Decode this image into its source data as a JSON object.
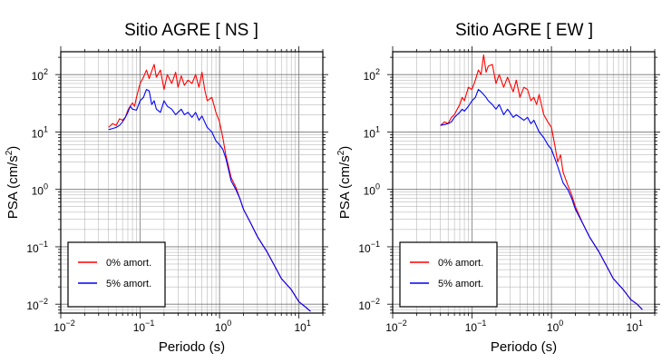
{
  "chart_data": [
    {
      "type": "line",
      "title": "Sitio AGRE [ NS ]",
      "xlabel": "Periodo (s)",
      "ylabel_base": "PSA (cm/s",
      "ylabel_sup": "2",
      "ylabel_end": ")",
      "x_scale": "log",
      "y_scale": "log",
      "xlim": [
        0.01,
        20
      ],
      "ylim": [
        0.007,
        250
      ],
      "grid": true,
      "legend_position": "bottom-left",
      "x_ticks": [
        {
          "base": "10",
          "exp": "−2",
          "value": 0.01
        },
        {
          "base": "10",
          "exp": "−1",
          "value": 0.1
        },
        {
          "base": "10",
          "exp": "0",
          "value": 1
        },
        {
          "base": "10",
          "exp": "1",
          "value": 10
        }
      ],
      "y_ticks": [
        {
          "base": "10",
          "exp": "−2",
          "value": 0.01
        },
        {
          "base": "10",
          "exp": "−1",
          "value": 0.1
        },
        {
          "base": "10",
          "exp": "0",
          "value": 1
        },
        {
          "base": "10",
          "exp": "1",
          "value": 10
        },
        {
          "base": "10",
          "exp": "2",
          "value": 100
        }
      ],
      "series": [
        {
          "name": "0% amort.",
          "color": "#ff0000",
          "x": [
            0.04,
            0.045,
            0.05,
            0.055,
            0.06,
            0.065,
            0.07,
            0.075,
            0.08,
            0.085,
            0.09,
            0.1,
            0.11,
            0.12,
            0.13,
            0.14,
            0.15,
            0.16,
            0.18,
            0.2,
            0.22,
            0.25,
            0.28,
            0.3,
            0.33,
            0.36,
            0.4,
            0.45,
            0.5,
            0.55,
            0.6,
            0.65,
            0.7,
            0.8,
            0.9,
            1.0,
            1.1,
            1.2,
            1.4,
            1.6,
            1.8,
            2.0,
            2.5,
            3.0,
            4.0,
            5.0,
            6.0,
            8.0,
            10,
            12,
            14
          ],
          "y": [
            12,
            14,
            13,
            17,
            16,
            18,
            24,
            28,
            32,
            28,
            40,
            70,
            90,
            120,
            85,
            115,
            150,
            90,
            120,
            55,
            100,
            70,
            110,
            60,
            95,
            65,
            80,
            70,
            100,
            60,
            110,
            55,
            35,
            40,
            22,
            15,
            8,
            4,
            1.6,
            1.1,
            0.7,
            0.45,
            0.25,
            0.15,
            0.08,
            0.045,
            0.028,
            0.018,
            0.011,
            0.009,
            0.0075
          ]
        },
        {
          "name": "5% amort.",
          "color": "#0000ff",
          "x": [
            0.04,
            0.045,
            0.05,
            0.055,
            0.06,
            0.065,
            0.07,
            0.075,
            0.08,
            0.09,
            0.1,
            0.11,
            0.12,
            0.13,
            0.14,
            0.15,
            0.16,
            0.18,
            0.2,
            0.22,
            0.25,
            0.28,
            0.3,
            0.33,
            0.36,
            0.4,
            0.45,
            0.5,
            0.55,
            0.6,
            0.7,
            0.8,
            0.9,
            1.0,
            1.1,
            1.2,
            1.4,
            1.6,
            1.8,
            2.0,
            2.5,
            3.0,
            4.0,
            5.0,
            6.0,
            8.0,
            10,
            12,
            14
          ],
          "y": [
            11,
            11.5,
            12,
            13,
            15,
            18,
            22,
            28,
            25,
            24,
            35,
            40,
            55,
            52,
            30,
            35,
            25,
            22,
            35,
            28,
            25,
            20,
            22,
            25,
            20,
            22,
            18,
            22,
            16,
            19,
            12,
            10,
            7,
            6,
            5,
            3.5,
            1.4,
            1.0,
            0.7,
            0.45,
            0.25,
            0.15,
            0.08,
            0.045,
            0.028,
            0.018,
            0.011,
            0.009,
            0.0075
          ]
        }
      ]
    },
    {
      "type": "line",
      "title": "Sitio AGRE [ EW ]",
      "xlabel": "Periodo (s)",
      "ylabel_base": "PSA (cm/s",
      "ylabel_sup": "2",
      "ylabel_end": ")",
      "x_scale": "log",
      "y_scale": "log",
      "xlim": [
        0.01,
        20
      ],
      "ylim": [
        0.007,
        250
      ],
      "grid": true,
      "legend_position": "bottom-left",
      "x_ticks": [
        {
          "base": "10",
          "exp": "−2",
          "value": 0.01
        },
        {
          "base": "10",
          "exp": "−1",
          "value": 0.1
        },
        {
          "base": "10",
          "exp": "0",
          "value": 1
        },
        {
          "base": "10",
          "exp": "1",
          "value": 10
        }
      ],
      "y_ticks": [
        {
          "base": "10",
          "exp": "−2",
          "value": 0.01
        },
        {
          "base": "10",
          "exp": "−1",
          "value": 0.1
        },
        {
          "base": "10",
          "exp": "0",
          "value": 1
        },
        {
          "base": "10",
          "exp": "1",
          "value": 10
        },
        {
          "base": "10",
          "exp": "2",
          "value": 100
        }
      ],
      "series": [
        {
          "name": "0% amort.",
          "color": "#ff0000",
          "x": [
            0.04,
            0.045,
            0.05,
            0.055,
            0.06,
            0.065,
            0.07,
            0.075,
            0.08,
            0.09,
            0.1,
            0.11,
            0.12,
            0.13,
            0.14,
            0.15,
            0.16,
            0.18,
            0.2,
            0.22,
            0.25,
            0.28,
            0.3,
            0.33,
            0.36,
            0.4,
            0.45,
            0.5,
            0.55,
            0.6,
            0.65,
            0.7,
            0.8,
            0.9,
            1.0,
            1.1,
            1.2,
            1.3,
            1.4,
            1.6,
            1.8,
            2.0,
            2.5,
            3.0,
            4.0,
            5.0,
            6.0,
            8.0,
            10,
            12,
            14
          ],
          "y": [
            13,
            15,
            14,
            18,
            20,
            25,
            30,
            40,
            35,
            60,
            55,
            80,
            120,
            100,
            220,
            110,
            140,
            150,
            70,
            100,
            60,
            90,
            70,
            50,
            80,
            40,
            60,
            55,
            35,
            40,
            30,
            45,
            20,
            15,
            12,
            6,
            3,
            4,
            2,
            1.2,
            0.8,
            0.5,
            0.25,
            0.15,
            0.08,
            0.045,
            0.028,
            0.018,
            0.012,
            0.01,
            0.008
          ]
        },
        {
          "name": "5% amort.",
          "color": "#0000ff",
          "x": [
            0.04,
            0.045,
            0.05,
            0.055,
            0.06,
            0.065,
            0.07,
            0.075,
            0.08,
            0.09,
            0.1,
            0.11,
            0.12,
            0.13,
            0.14,
            0.15,
            0.16,
            0.18,
            0.2,
            0.22,
            0.25,
            0.28,
            0.3,
            0.33,
            0.36,
            0.4,
            0.45,
            0.5,
            0.55,
            0.6,
            0.7,
            0.8,
            0.9,
            1.0,
            1.1,
            1.2,
            1.4,
            1.6,
            1.8,
            2.0,
            2.5,
            3.0,
            4.0,
            5.0,
            6.0,
            8.0,
            10,
            12,
            14
          ],
          "y": [
            13,
            13.5,
            14,
            15,
            18,
            20,
            22,
            25,
            23,
            28,
            35,
            40,
            55,
            50,
            45,
            40,
            35,
            30,
            25,
            30,
            20,
            25,
            22,
            18,
            20,
            18,
            16,
            18,
            14,
            16,
            10,
            8,
            6,
            5,
            3.5,
            2.5,
            1.3,
            1.0,
            0.7,
            0.45,
            0.25,
            0.15,
            0.08,
            0.045,
            0.028,
            0.018,
            0.012,
            0.01,
            0.008
          ]
        }
      ]
    }
  ]
}
